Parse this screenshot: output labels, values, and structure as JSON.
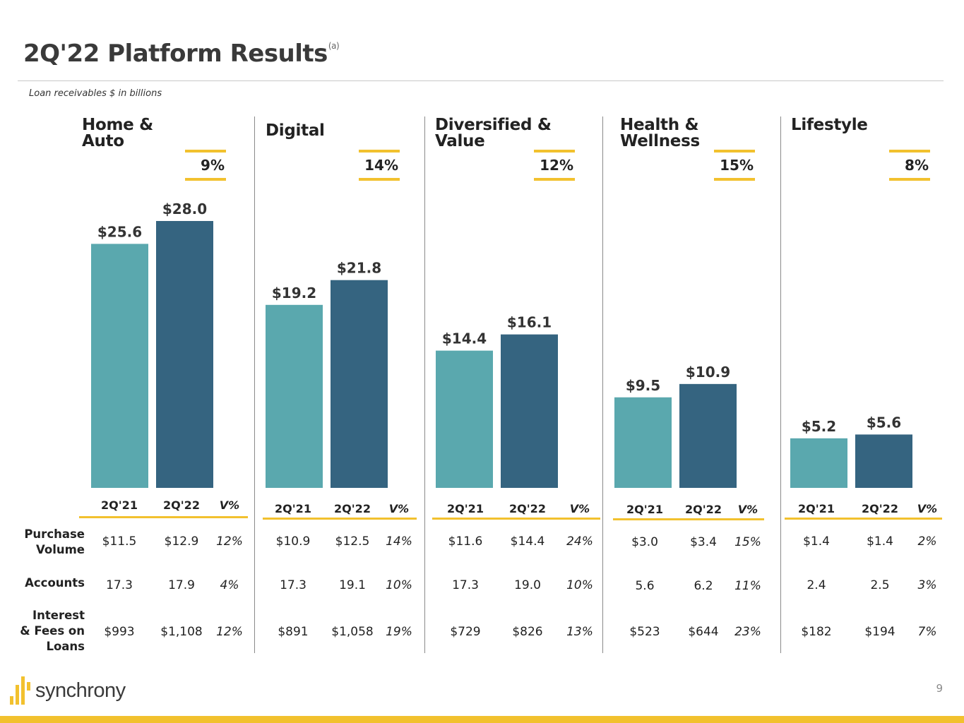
{
  "header": {
    "title": "2Q'22 Platform Results",
    "footnote_marker": "(a)",
    "subtitle": "Loan receivables $ in billions"
  },
  "colors": {
    "bar_prior": "#5aa8ae",
    "bar_current": "#356480",
    "accent": "#f2c12e"
  },
  "table": {
    "headers": [
      "2Q'21",
      "2Q'22",
      "V%"
    ],
    "row_labels": [
      "Purchase\nVolume",
      "Accounts",
      "Interest\n& Fees on\nLoans"
    ]
  },
  "chart_data": {
    "type": "bar",
    "categories": [
      "2Q'21",
      "2Q'22"
    ],
    "ylabel": "Loan receivables $ in billions",
    "ylim": [
      0,
      28
    ],
    "segments": [
      {
        "name": "Home &\nAuto",
        "growth": "9%",
        "values": [
          25.6,
          28.0
        ],
        "labels": [
          "$25.6",
          "$28.0"
        ],
        "metrics": {
          "purchase_volume": [
            "$11.5",
            "$12.9",
            "12%"
          ],
          "accounts": [
            "17.3",
            "17.9",
            "4%"
          ],
          "interest_fees": [
            "$993",
            "$1,108",
            "12%"
          ]
        }
      },
      {
        "name": "Digital",
        "growth": "14%",
        "values": [
          19.2,
          21.8
        ],
        "labels": [
          "$19.2",
          "$21.8"
        ],
        "metrics": {
          "purchase_volume": [
            "$10.9",
            "$12.5",
            "14%"
          ],
          "accounts": [
            "17.3",
            "19.1",
            "10%"
          ],
          "interest_fees": [
            "$891",
            "$1,058",
            "19%"
          ]
        }
      },
      {
        "name": "Diversified &\nValue",
        "growth": "12%",
        "values": [
          14.4,
          16.1
        ],
        "labels": [
          "$14.4",
          "$16.1"
        ],
        "metrics": {
          "purchase_volume": [
            "$11.6",
            "$14.4",
            "24%"
          ],
          "accounts": [
            "17.3",
            "19.0",
            "10%"
          ],
          "interest_fees": [
            "$729",
            "$826",
            "13%"
          ]
        }
      },
      {
        "name": "Health &\nWellness",
        "growth": "15%",
        "values": [
          9.5,
          10.9
        ],
        "labels": [
          "$9.5",
          "$10.9"
        ],
        "metrics": {
          "purchase_volume": [
            "$3.0",
            "$3.4",
            "15%"
          ],
          "accounts": [
            "5.6",
            "6.2",
            "11%"
          ],
          "interest_fees": [
            "$523",
            "$644",
            "23%"
          ]
        }
      },
      {
        "name": "Lifestyle",
        "growth": "8%",
        "values": [
          5.2,
          5.6
        ],
        "labels": [
          "$5.2",
          "$5.6"
        ],
        "metrics": {
          "purchase_volume": [
            "$1.4",
            "$1.4",
            "2%"
          ],
          "accounts": [
            "2.4",
            "2.5",
            "3%"
          ],
          "interest_fees": [
            "$182",
            "$194",
            "7%"
          ]
        }
      }
    ]
  },
  "footer": {
    "brand": "synchrony",
    "page_number": "9"
  }
}
